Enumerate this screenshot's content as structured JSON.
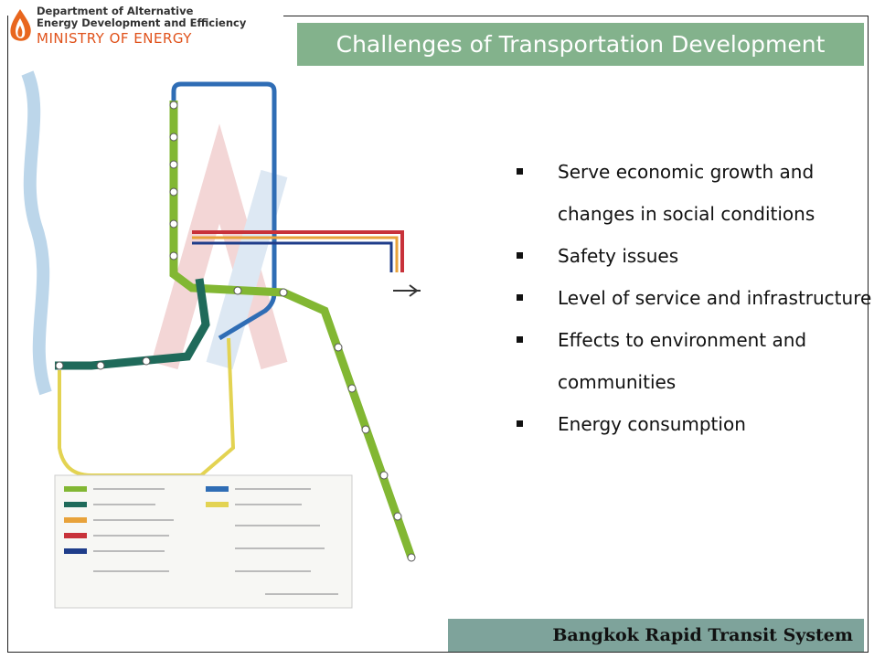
{
  "header": {
    "department": [
      "Department of Alternative",
      "Energy Development and Efficiency"
    ],
    "ministry": "MINISTRY OF ENERGY"
  },
  "title": "Challenges of Transportation Development",
  "bullets": [
    [
      "Serve economic growth and",
      "changes in social conditions"
    ],
    [
      "Safety issues"
    ],
    [
      "Level of service and infrastructure"
    ],
    [
      "Effects to environment and",
      "communities"
    ],
    [
      "Energy consumption"
    ]
  ],
  "footer": "Bangkok Rapid Transit System"
}
